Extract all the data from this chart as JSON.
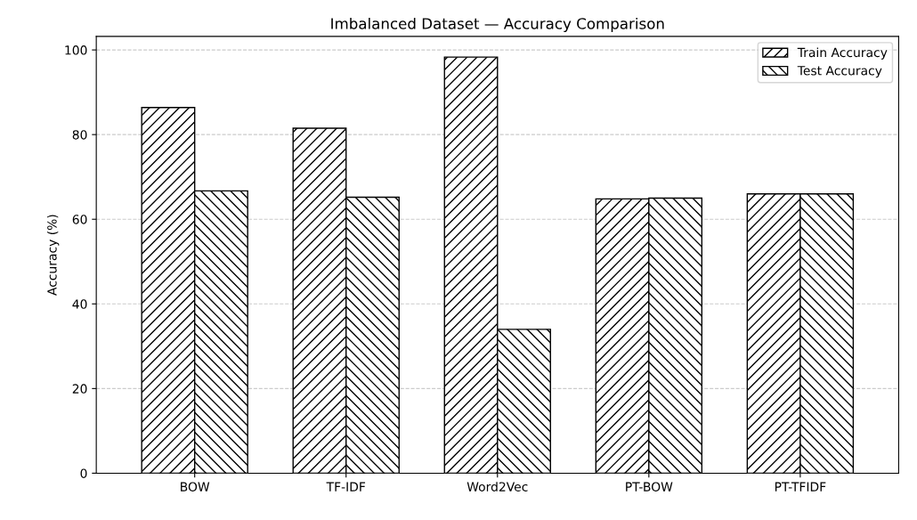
{
  "chart_data": {
    "type": "bar",
    "title": "Imbalanced Dataset — Accuracy Comparison",
    "ylabel": "Accuracy (%)",
    "categories": [
      "BOW",
      "TF-IDF",
      "Word2Vec",
      "PT-BOW",
      "PT-TFIDF"
    ],
    "series": [
      {
        "name": "Train Accuracy",
        "color": "#000000",
        "values": [
          86.4,
          81.5,
          98.3,
          64.8,
          66.0
        ]
      },
      {
        "name": "Test Accuracy",
        "color": "#000000",
        "values": [
          66.7,
          65.2,
          34.0,
          65.0,
          66.0
        ]
      }
    ],
    "ylim": [
      0,
      103.2
    ],
    "yticks": [
      0,
      20,
      40,
      60,
      80,
      100
    ],
    "grid": "y",
    "legend": "top right"
  }
}
